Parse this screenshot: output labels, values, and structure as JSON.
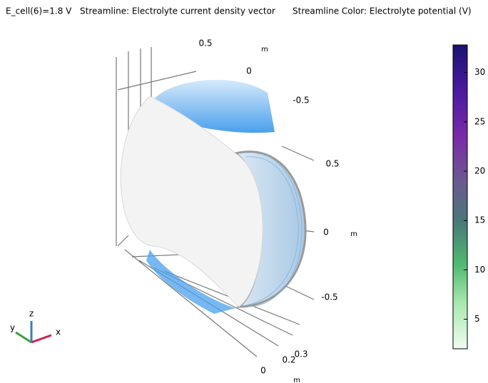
{
  "header": {
    "parts": [
      "E_cell(6)=1.8 V",
      "Streamline: Electrolyte current density vector",
      "Streamline Color: Electrolyte potential (V)"
    ]
  },
  "axis_labels": {
    "top": [
      "0.5",
      "m",
      "0",
      "-0.5"
    ],
    "right": [
      "0.5",
      "0",
      "m",
      "-0.5"
    ],
    "bottom": [
      "0.3",
      "0.2",
      "0",
      "m"
    ]
  },
  "triad": [
    "z",
    "y",
    "x"
  ],
  "colorbar": {
    "range": [
      2,
      32.8
    ],
    "ticks": [
      5,
      10,
      15,
      20,
      25,
      30
    ]
  }
}
